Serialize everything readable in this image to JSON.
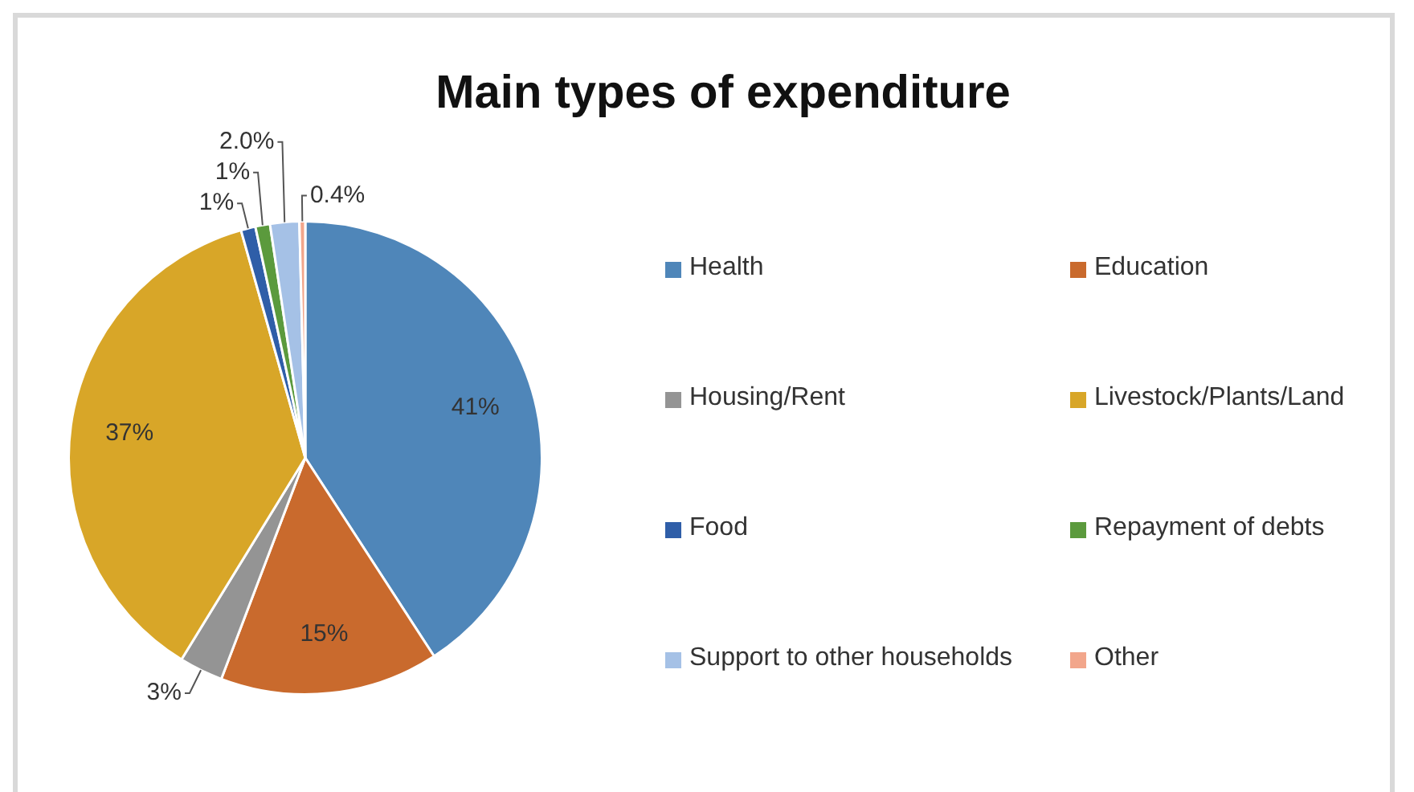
{
  "chart_data": {
    "type": "pie",
    "title": "Main types of expenditure",
    "categories": [
      "Health",
      "Education",
      "Housing/Rent",
      "Livestock/Plants/Land",
      "Food",
      "Repayment of debts",
      "Support to other households",
      "Other"
    ],
    "values": [
      41,
      15,
      3,
      37,
      1,
      1,
      2.0,
      0.4
    ],
    "value_labels": [
      "41%",
      "15%",
      "3%",
      "37%",
      "1%",
      "1%",
      "2.0%",
      "0.4%"
    ],
    "colors": [
      "#4f86b9",
      "#c96a2d",
      "#949494",
      "#d8a628",
      "#2f5ea8",
      "#5b9a3d",
      "#a5c1e6",
      "#f2a68b"
    ],
    "legend": "right"
  }
}
